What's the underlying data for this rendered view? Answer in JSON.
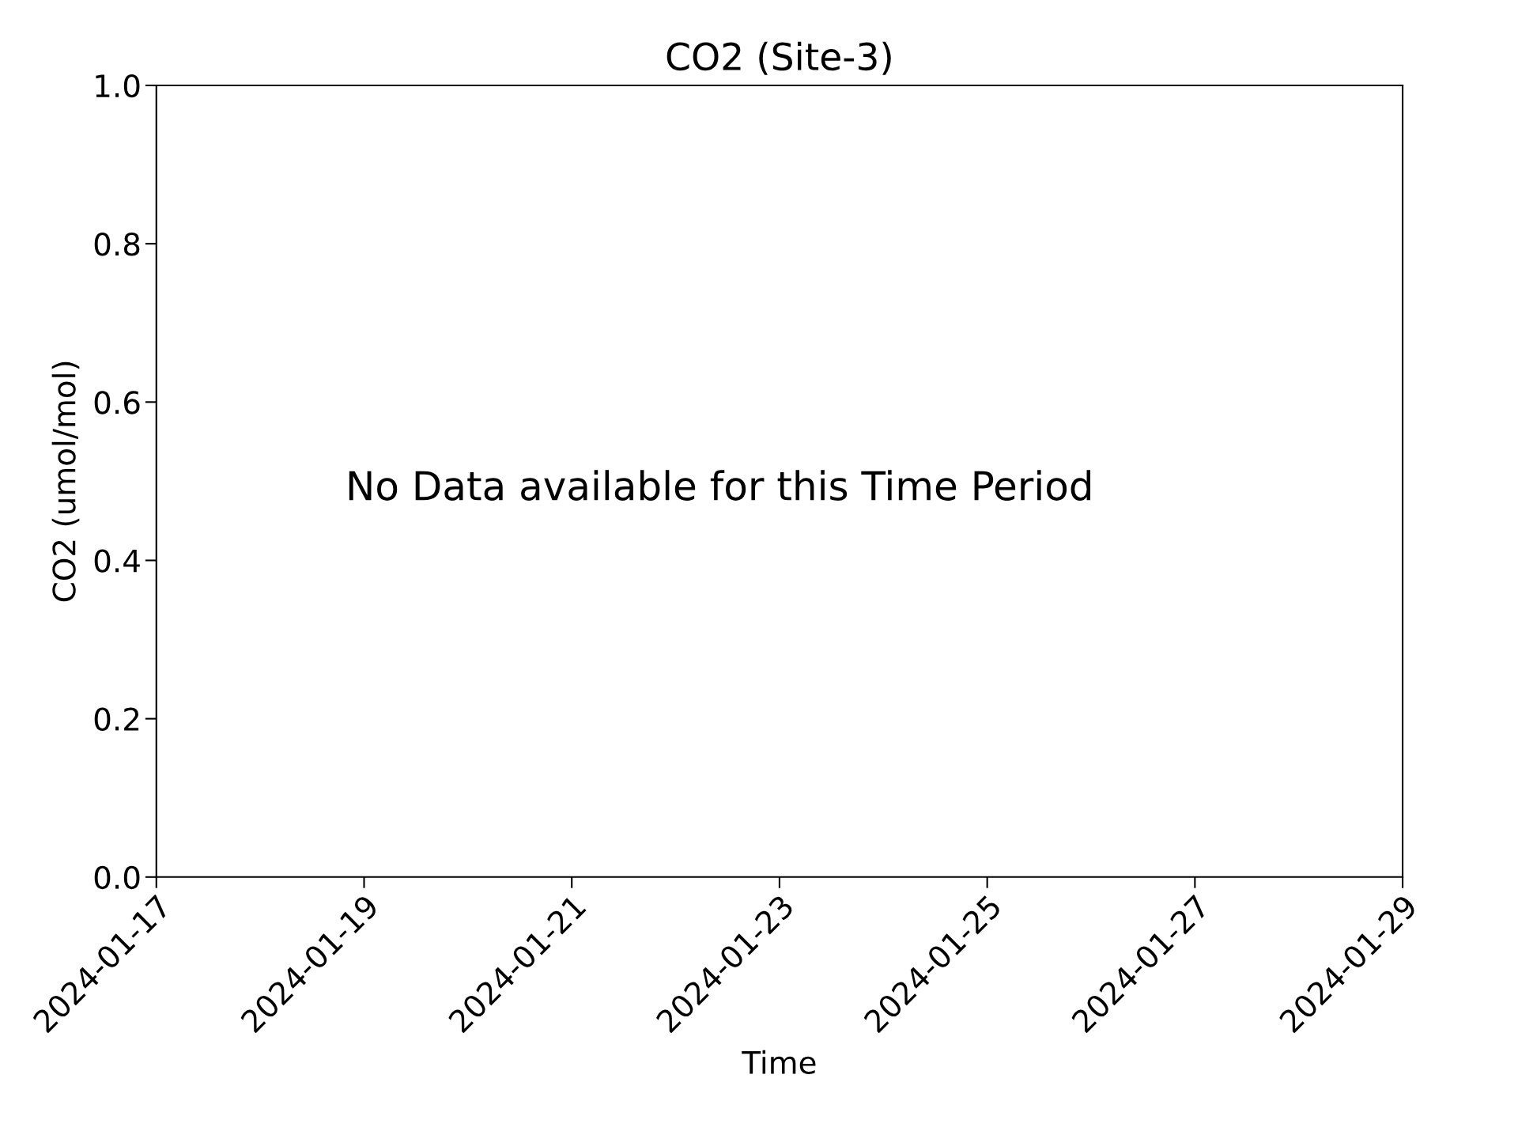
{
  "chart_data": {
    "type": "line",
    "title": "CO2 (Site-3)",
    "xlabel": "Time",
    "ylabel": "CO2 (umol/mol)",
    "xlim": [
      "2024-01-17",
      "2024-01-29"
    ],
    "xticks": [
      "2024-01-17",
      "2024-01-19",
      "2024-01-21",
      "2024-01-23",
      "2024-01-25",
      "2024-01-27",
      "2024-01-29"
    ],
    "ylim": [
      0,
      1
    ],
    "yticks": [
      {
        "value": 0,
        "label": "0.0"
      },
      {
        "value": 0.2,
        "label": "0.2"
      },
      {
        "value": 0.4,
        "label": "0.4"
      },
      {
        "value": 0.6,
        "label": "0.6"
      },
      {
        "value": 0.8,
        "label": "0.8"
      },
      {
        "value": 1,
        "label": "1.0"
      }
    ],
    "grid": false,
    "annotations": [
      "No Data available for this Time Period"
    ]
  }
}
